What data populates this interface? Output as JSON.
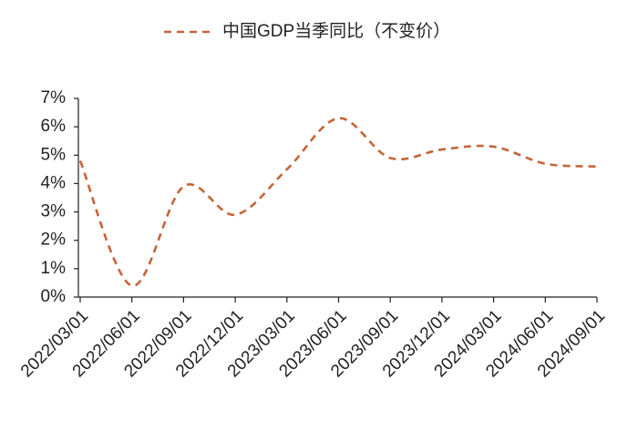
{
  "chart_data": {
    "type": "line",
    "categories": [
      "2022/03/01",
      "2022/06/01",
      "2022/09/01",
      "2022/12/01",
      "2023/03/01",
      "2023/06/01",
      "2023/09/01",
      "2023/12/01",
      "2024/03/01",
      "2024/06/01",
      "2024/09/01"
    ],
    "series": [
      {
        "name": "中国GDP当季同比（不变价）",
        "color": "#c4643a",
        "values": [
          4.8,
          0.4,
          3.9,
          2.9,
          4.5,
          6.3,
          4.9,
          5.2,
          5.3,
          4.7,
          4.6
        ]
      }
    ],
    "ylim": [
      0,
      7
    ],
    "yticks": [
      {
        "value": 0,
        "label": "0%"
      },
      {
        "value": 1,
        "label": "1%"
      },
      {
        "value": 2,
        "label": "2%"
      },
      {
        "value": 3,
        "label": "3%"
      },
      {
        "value": 4,
        "label": "4%"
      },
      {
        "value": 5,
        "label": "5%"
      },
      {
        "value": 6,
        "label": "6%"
      },
      {
        "value": 7,
        "label": "7%"
      }
    ],
    "legend": "top",
    "grid": false,
    "smooth": true,
    "dashed": true
  }
}
